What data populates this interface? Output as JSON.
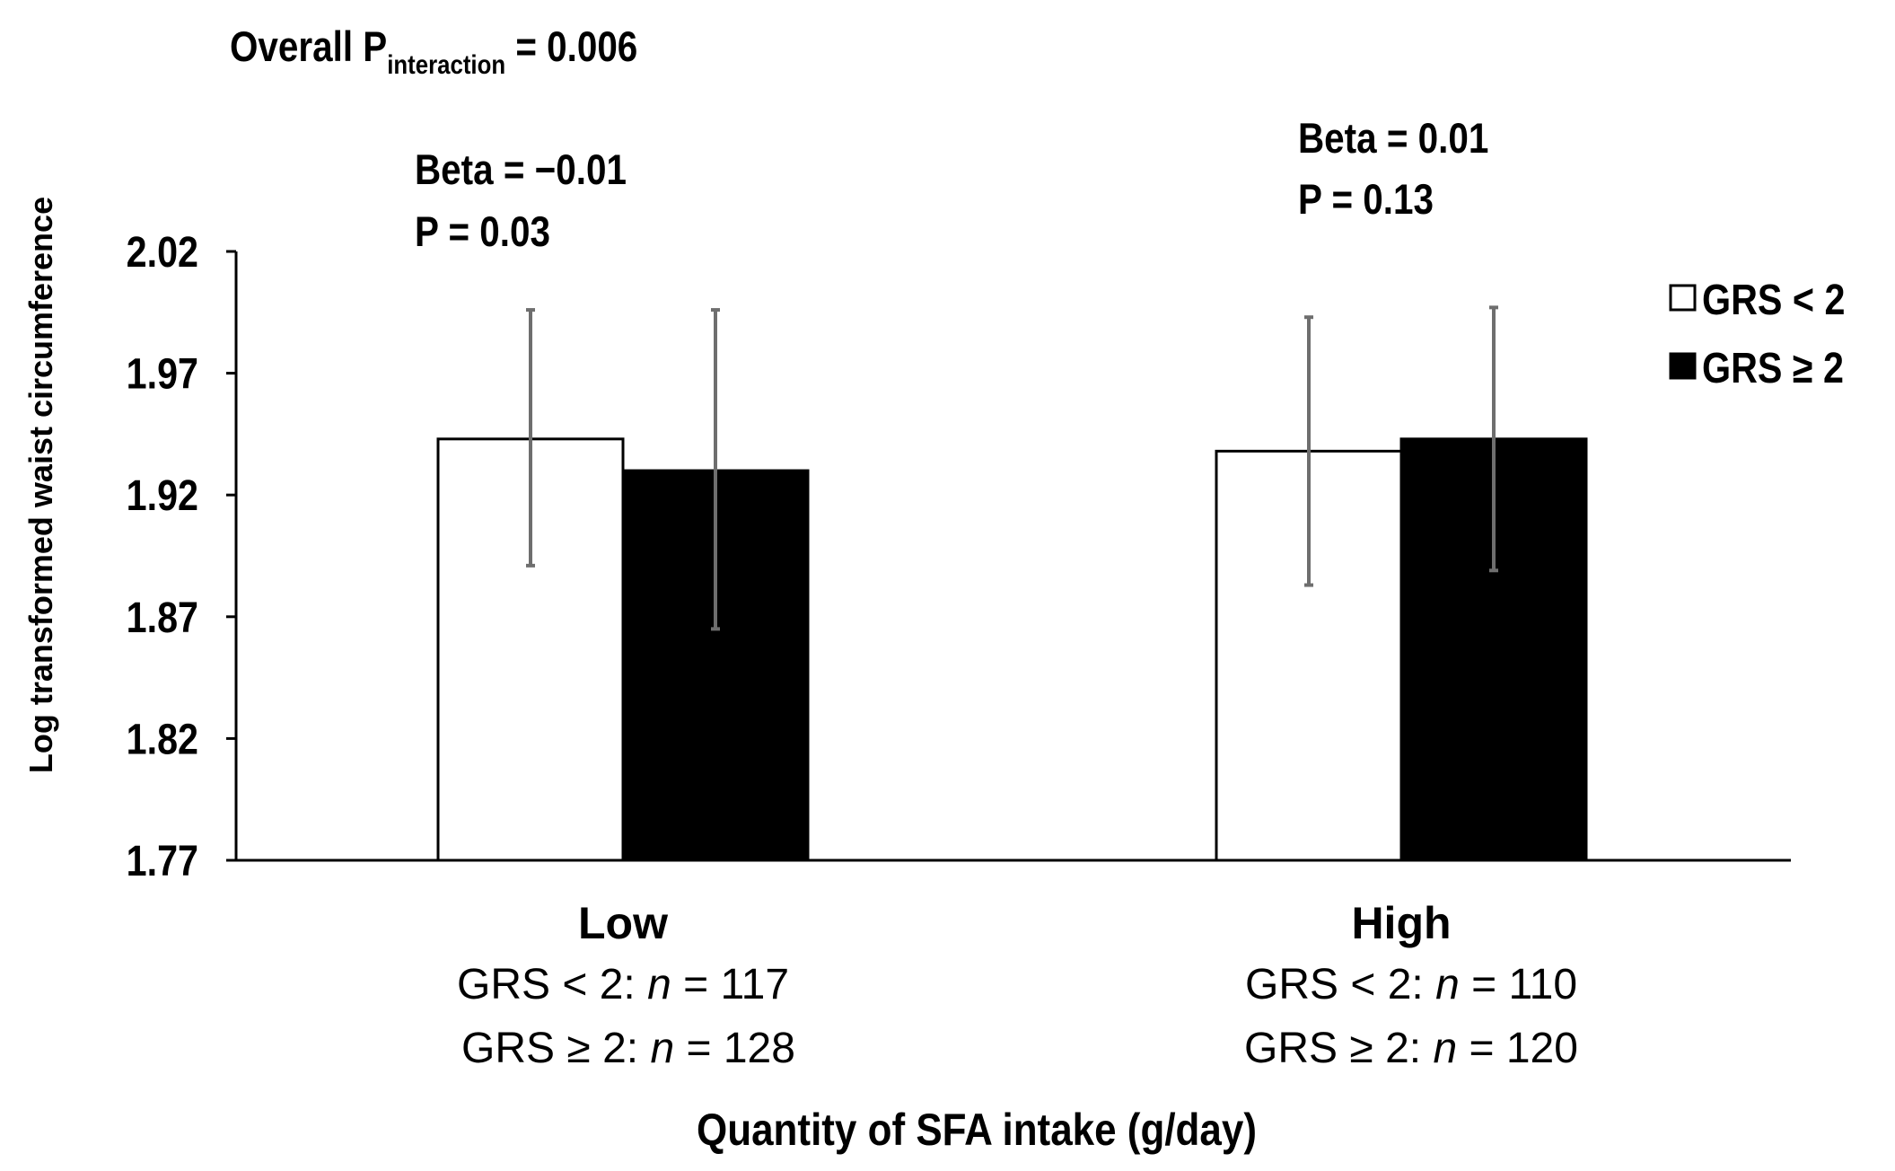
{
  "chart_data": {
    "type": "bar",
    "title": "",
    "xlabel": "Quantity of SFA intake (g/day)",
    "ylabel": "Log transformed waist circumference",
    "ylim": [
      1.77,
      2.02
    ],
    "yticks": [
      "2.02",
      "1.97",
      "1.92",
      "1.87",
      "1.82",
      "1.77"
    ],
    "grid": false,
    "legend_position": "top-right",
    "categories": [
      "Low",
      "High"
    ],
    "series": [
      {
        "name": "GRS < 2",
        "fill": "#ffffff",
        "stroke": "#000000",
        "values": [
          1.943,
          1.938
        ],
        "error_low": [
          1.891,
          1.883
        ],
        "error_high": [
          1.996,
          1.993
        ]
      },
      {
        "name": "GRS ≥ 2",
        "fill": "#000000",
        "stroke": "#000000",
        "values": [
          1.93,
          1.943
        ],
        "error_low": [
          1.865,
          1.889
        ],
        "error_high": [
          1.996,
          1.997
        ]
      }
    ],
    "group_sample_sizes": [
      {
        "line1_prefix": "GRS < 2: ",
        "line1_n": "n",
        "line1_value": " = 117",
        "line2_prefix": "GRS ≥ 2: ",
        "line2_n": "n",
        "line2_value": " =  128"
      },
      {
        "line1_prefix": "GRS < 2: ",
        "line1_n": "n",
        "line1_value": " = 110",
        "line2_prefix": "GRS ≥ 2: ",
        "line2_n": "n",
        "line2_value": " = 120"
      }
    ],
    "annotations": {
      "overall_prefix": "Overall P",
      "overall_sub": "interaction",
      "overall_value": " = 0.006",
      "low_beta": "Beta = −0.01",
      "low_p": "P =  0.03",
      "high_beta": "Beta = 0.01",
      "high_p": "P =  0.13"
    },
    "colors": {
      "axis": "#000000",
      "error_bar": "#6e6e6e",
      "text": "#000000"
    }
  }
}
